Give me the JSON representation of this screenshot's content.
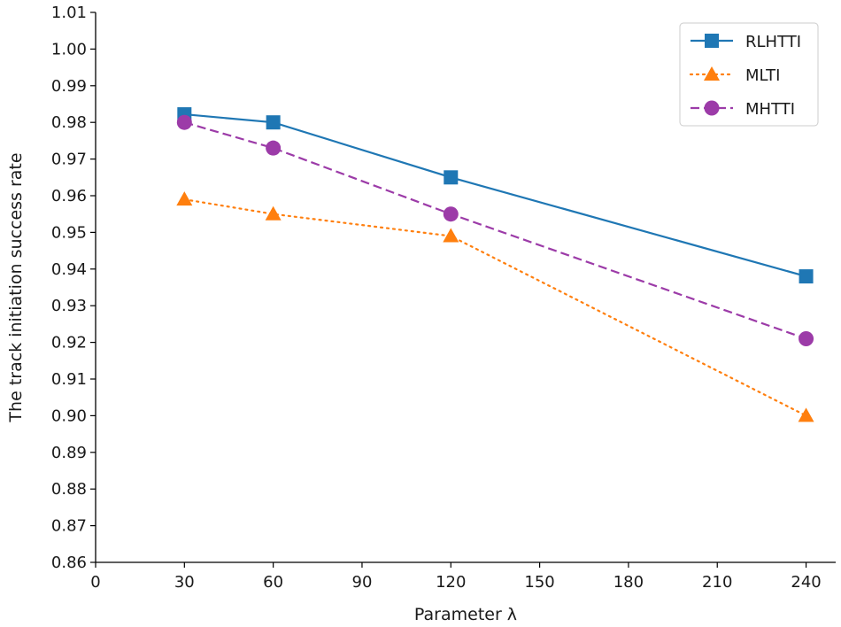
{
  "chart_data": {
    "type": "line",
    "title": "",
    "xlabel": "Parameter λ",
    "ylabel": "The track initiation success rate",
    "xlim": [
      0,
      250
    ],
    "ylim": [
      0.86,
      1.01
    ],
    "xticks": [
      0,
      30,
      60,
      90,
      120,
      150,
      180,
      210,
      240
    ],
    "xtick_labels": [
      "0",
      "30",
      "60",
      "90",
      "120",
      "150",
      "180",
      "210",
      "240"
    ],
    "yticks": [
      0.86,
      0.87,
      0.88,
      0.89,
      0.9,
      0.91,
      0.92,
      0.93,
      0.94,
      0.95,
      0.96,
      0.97,
      0.98,
      0.99,
      1.0,
      1.01
    ],
    "ytick_labels": [
      "0.86",
      "0.87",
      "0.88",
      "0.89",
      "0.90",
      "0.91",
      "0.92",
      "0.93",
      "0.94",
      "0.95",
      "0.96",
      "0.97",
      "0.98",
      "0.99",
      "1.00",
      "1.01"
    ],
    "grid": false,
    "legend_position": "top-right",
    "x": [
      30,
      60,
      120,
      240
    ],
    "series": [
      {
        "name": "RLHTTI",
        "values": [
          0.9822,
          0.98,
          0.965,
          0.938
        ],
        "color": "#1f77b4",
        "line": "solid",
        "marker": "square"
      },
      {
        "name": "MLTI",
        "values": [
          0.959,
          0.955,
          0.949,
          0.9
        ],
        "color": "#ff7f0e",
        "line": "dotted",
        "marker": "triangle"
      },
      {
        "name": "MHTTI",
        "values": [
          0.98,
          0.973,
          0.955,
          0.921
        ],
        "color": "#9c3ba8",
        "line": "dashed",
        "marker": "circle"
      }
    ]
  }
}
